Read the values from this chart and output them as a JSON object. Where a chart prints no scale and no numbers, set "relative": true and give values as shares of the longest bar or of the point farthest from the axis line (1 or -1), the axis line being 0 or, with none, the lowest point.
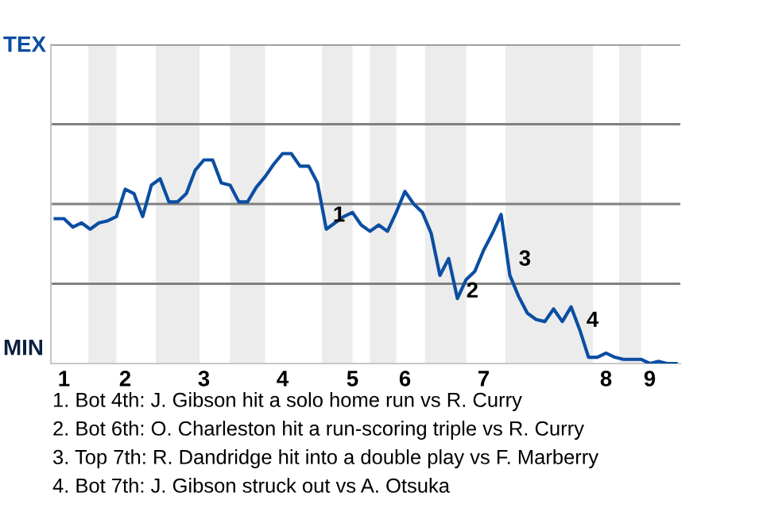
{
  "chart_data": {
    "type": "line",
    "relative": true,
    "categories": [
      null,
      "1",
      null,
      null,
      null,
      null,
      null,
      null,
      "2",
      null,
      null,
      null,
      null,
      null,
      null,
      null,
      null,
      "3",
      null,
      null,
      null,
      null,
      null,
      null,
      null,
      null,
      "4",
      null,
      null,
      null,
      null,
      null,
      null,
      null,
      "5",
      null,
      null,
      null,
      null,
      null,
      "6",
      null,
      null,
      null,
      null,
      null,
      null,
      null,
      null,
      "7",
      null,
      null,
      null,
      null,
      null,
      null,
      null,
      null,
      null,
      null,
      null,
      null,
      null,
      "8",
      null,
      null,
      null,
      null,
      "9",
      null,
      null,
      null
    ],
    "series": [
      {
        "color": "#0b4ea2",
        "values": [
          0.69,
          0.69,
          0.65,
          0.67,
          0.64,
          0.67,
          0.68,
          0.7,
          0.83,
          0.81,
          0.7,
          0.85,
          0.88,
          0.77,
          0.77,
          0.81,
          0.92,
          0.97,
          0.97,
          0.86,
          0.85,
          0.77,
          0.77,
          0.84,
          0.89,
          0.95,
          1,
          1,
          0.94,
          0.94,
          0.86,
          0.64,
          0.67,
          0.7,
          0.72,
          0.66,
          0.63,
          0.66,
          0.63,
          0.72,
          0.82,
          0.76,
          0.72,
          0.62,
          0.42,
          0.5,
          0.31,
          0.4,
          0.44,
          0.54,
          0.62,
          0.71,
          0.42,
          0.32,
          0.24,
          0.21,
          0.2,
          0.26,
          0.2,
          0.27,
          0.16,
          0.03,
          0.03,
          0.05,
          0.03,
          0.02,
          0.02,
          0.02,
          0,
          0.01,
          0,
          0
        ]
      }
    ],
    "ref_lines": [
      {
        "axis": "y",
        "value": 0.38,
        "color": "#808080"
      },
      {
        "axis": "y",
        "value": 0.76,
        "color": "#808080"
      },
      {
        "axis": "y",
        "value": 1.14,
        "color": "#808080"
      },
      {
        "axis": "y",
        "value": 1.52,
        "color": "#808080"
      }
    ],
    "annotations": [
      "TEX",
      "MIN",
      "1",
      "2",
      "3",
      "4",
      "1. Bot 4th: J. Gibson hit a solo home run vs R. Curry",
      "2. Bot 6th: O. Charleston hit a run-scoring triple vs R. Curry",
      "3. Top 7th: R. Dandridge hit into a double play vs F. Marberry",
      "4. Bot 7th: J. Gibson struck out vs A. Otsuka"
    ]
  }
}
